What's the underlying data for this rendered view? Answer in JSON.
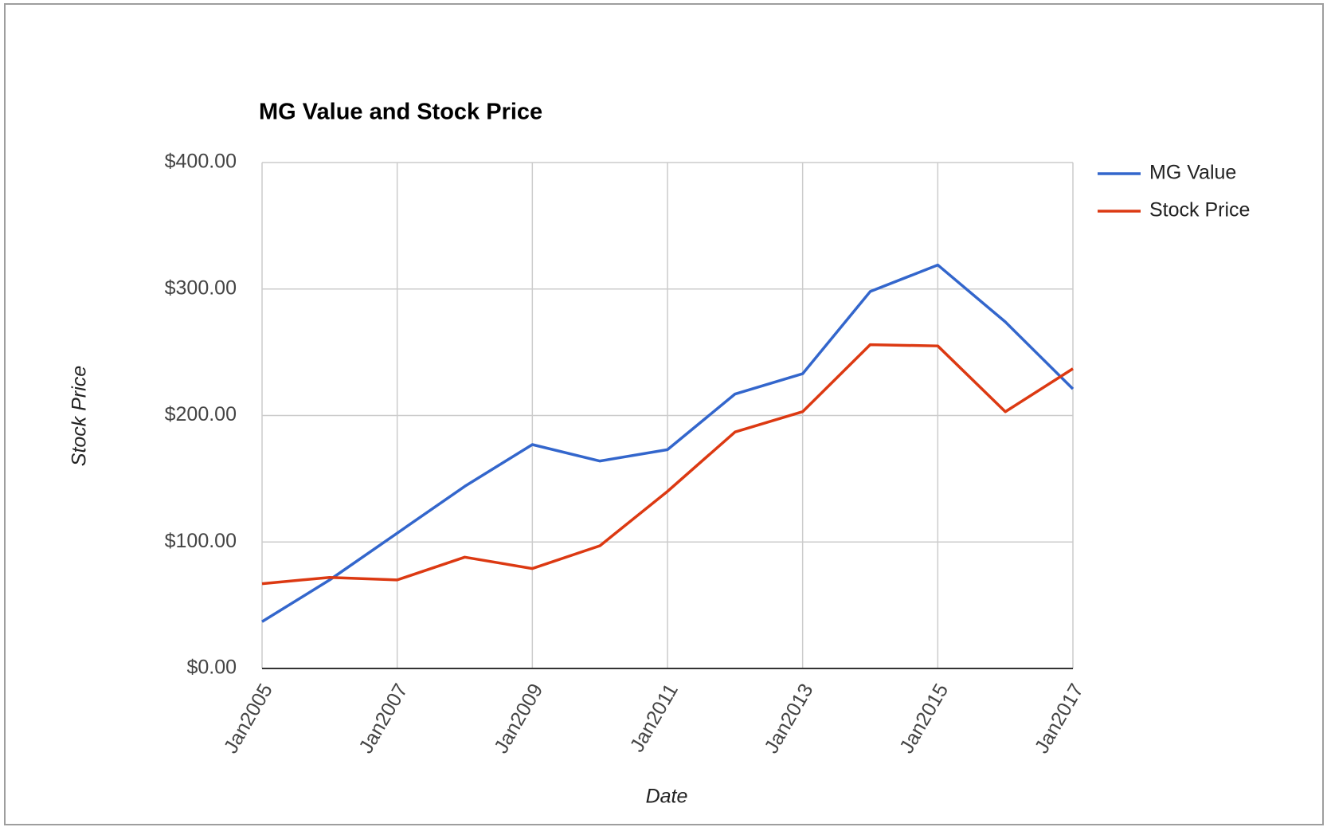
{
  "chart_data": {
    "type": "line",
    "title": "MG Value and Stock Price",
    "x_label": "Date",
    "y_label": "Stock Price",
    "x": [
      2005,
      2006,
      2007,
      2008,
      2009,
      2010,
      2011,
      2012,
      2013,
      2014,
      2015,
      2016,
      2017
    ],
    "series": [
      {
        "name": "MG Value",
        "color": "#3366cc",
        "values": [
          37,
          70,
          107,
          144,
          177,
          164,
          173,
          217,
          233,
          298,
          319,
          274,
          221
        ]
      },
      {
        "name": "Stock Price",
        "color": "#dc3912",
        "values": [
          67,
          72,
          70,
          88,
          79,
          97,
          140,
          187,
          203,
          256,
          255,
          203,
          237
        ]
      }
    ],
    "xlim": [
      2005,
      2017
    ],
    "xticks": [
      {
        "value": 2005,
        "label": "Jan2005"
      },
      {
        "value": 2007,
        "label": "Jan2007"
      },
      {
        "value": 2009,
        "label": "Jan2009"
      },
      {
        "value": 2011,
        "label": "Jan2011"
      },
      {
        "value": 2013,
        "label": "Jan2013"
      },
      {
        "value": 2015,
        "label": "Jan2015"
      },
      {
        "value": 2017,
        "label": "Jan2017"
      }
    ],
    "ylim": [
      0,
      400
    ],
    "yticks": [
      {
        "value": 0,
        "label": "$0.00"
      },
      {
        "value": 100,
        "label": "$100.00"
      },
      {
        "value": 200,
        "label": "$200.00"
      },
      {
        "value": 300,
        "label": "$300.00"
      },
      {
        "value": 400,
        "label": "$400.00"
      }
    ],
    "grid": true,
    "legend": "right"
  }
}
